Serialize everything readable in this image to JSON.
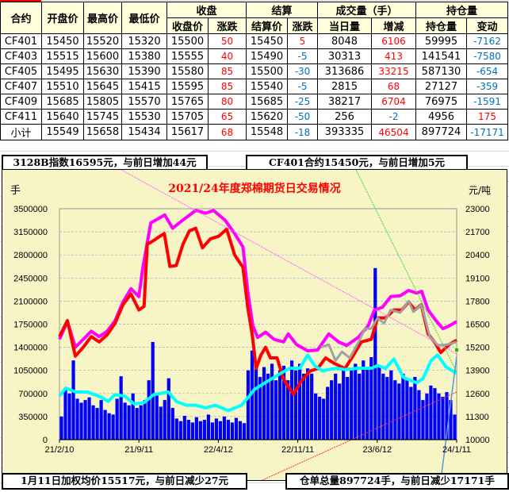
{
  "colors": {
    "up": "#ff0000",
    "down": "#0070c0",
    "header_bg": "#ffffdc",
    "chart_bg": "#f7f4c6"
  },
  "table": {
    "group_headers": {
      "close": "收盘",
      "settle": "结算",
      "volume": "成交量（手）",
      "oi": "持仓量"
    },
    "columns": [
      "合约",
      "开盘价",
      "最高价",
      "最低价",
      "收盘价",
      "涨跌",
      "结算价",
      "涨跌",
      "当日量",
      "增减",
      "持仓量",
      "变动"
    ],
    "rows": [
      [
        "CF401",
        "15450",
        "15520",
        "15320",
        "15500",
        "50",
        "15450",
        "5",
        "8048",
        "6106",
        "59995",
        "-7162"
      ],
      [
        "CF403",
        "15515",
        "15600",
        "15380",
        "15555",
        "40",
        "15490",
        "-5",
        "30313",
        "413",
        "141541",
        "-7580"
      ],
      [
        "CF405",
        "15495",
        "15630",
        "15390",
        "15580",
        "85",
        "15500",
        "-30",
        "313686",
        "33215",
        "587130",
        "-654"
      ],
      [
        "CF407",
        "15510",
        "15645",
        "15415",
        "15595",
        "85",
        "15540",
        "-5",
        "2815",
        "68",
        "27127",
        "-359"
      ],
      [
        "CF409",
        "15685",
        "15805",
        "15570",
        "15765",
        "80",
        "15685",
        "-25",
        "38217",
        "6704",
        "76975",
        "-1591"
      ],
      [
        "CF411",
        "15640",
        "15745",
        "15530",
        "15705",
        "65",
        "15620",
        "-50",
        "256",
        "-2",
        "4956",
        "175"
      ],
      [
        "小计",
        "15549",
        "15658",
        "15434",
        "15617",
        "68",
        "15548",
        "-18",
        "393335",
        "46504",
        "897724",
        "-17171"
      ]
    ]
  },
  "summary": {
    "index_text": "3128B指数16595元，与前日增加44元",
    "contract_text": "CF401合约15450元，与前日增加5元",
    "weighted_text": "1月11日加权均价15517元，与前日减少27元",
    "warehouse_text": "仓单总量897724手，与前日减少17171手"
  },
  "chart_data": {
    "type": "bar+line",
    "title": "2021/24年度郑棉期货日交易情况",
    "ylabel_left": "手",
    "ylabel_right": "元/吨",
    "ylim_left": [
      0,
      3500000
    ],
    "ylim_right": [
      10000,
      23000
    ],
    "yticks_left": [
      "0",
      "350000",
      "700000",
      "1050000",
      "1400000",
      "1750000",
      "2100000",
      "2450000",
      "2800000",
      "3150000",
      "3500000"
    ],
    "yticks_right": [
      "10000",
      "11300",
      "12600",
      "13900",
      "15200",
      "16500",
      "17800",
      "19100",
      "20400",
      "21700",
      "23000"
    ],
    "xticks": [
      "21/2/10",
      "21/9/11",
      "22/4/12",
      "22/11/11",
      "23/6/12",
      "24/1/11"
    ],
    "grid": true,
    "volume_bars": {
      "axis": "left",
      "color": "#0000ff",
      "values": [
        350000,
        780000,
        700000,
        1200000,
        620000,
        560000,
        600000,
        640000,
        520000,
        480000,
        600000,
        450000,
        400000,
        380000,
        620000,
        960000,
        560000,
        520000,
        700000,
        480000,
        520000,
        600000,
        900000,
        1480000,
        700000,
        500000,
        600000,
        930000,
        480000,
        320000,
        280000,
        360000,
        300000,
        260000,
        340000,
        280000,
        300000,
        380000,
        260000,
        320000,
        280000,
        350000,
        300000,
        260000,
        330000,
        280000,
        250000,
        1050000,
        1350000,
        1150000,
        950000,
        1100000,
        1000000,
        1150000,
        900000,
        1050000,
        1120000,
        900000,
        1200000,
        1050000,
        1150000,
        1000000,
        1080000,
        1000000,
        700000,
        650000,
        620000,
        800000,
        900000,
        1000000,
        850000,
        1100000,
        950000,
        1050000,
        1150000,
        1000000,
        1200000,
        1100000,
        1250000,
        2600000,
        1100000,
        1000000,
        950000,
        1050000,
        900000,
        850000,
        1000000,
        900000,
        800000,
        950000,
        750000,
        600000,
        700000,
        820000,
        780000,
        700000,
        650000,
        720000,
        600000,
        380000
      ]
    },
    "lines": [
      {
        "key": "magenta",
        "axis": "right",
        "color": "#ff00ff",
        "points": [
          [
            0,
            15650
          ],
          [
            0.02,
            16650
          ],
          [
            0.04,
            15200
          ],
          [
            0.06,
            15650
          ],
          [
            0.08,
            16100
          ],
          [
            0.1,
            15800
          ],
          [
            0.12,
            16100
          ],
          [
            0.14,
            16700
          ],
          [
            0.16,
            17750
          ],
          [
            0.18,
            18500
          ],
          [
            0.2,
            18050
          ],
          [
            0.21,
            19700
          ],
          [
            0.23,
            22200
          ],
          [
            0.265,
            22650
          ],
          [
            0.285,
            21900
          ],
          [
            0.31,
            22350
          ],
          [
            0.343,
            22900
          ],
          [
            0.368,
            22750
          ],
          [
            0.388,
            22900
          ],
          [
            0.417,
            22350
          ],
          [
            0.441,
            21600
          ],
          [
            0.462,
            20850
          ],
          [
            0.474,
            18350
          ],
          [
            0.487,
            16400
          ],
          [
            0.499,
            15750
          ],
          [
            0.519,
            16050
          ],
          [
            0.54,
            15650
          ],
          [
            0.564,
            15500
          ],
          [
            0.576,
            15950
          ],
          [
            0.597,
            15350
          ],
          [
            0.625,
            15000
          ],
          [
            0.65,
            15050
          ],
          [
            0.678,
            15950
          ],
          [
            0.703,
            15500
          ],
          [
            0.723,
            15300
          ],
          [
            0.752,
            15750
          ],
          [
            0.777,
            16400
          ],
          [
            0.793,
            17300
          ],
          [
            0.813,
            17450
          ],
          [
            0.834,
            18050
          ],
          [
            0.858,
            18100
          ],
          [
            0.879,
            18400
          ],
          [
            0.899,
            18250
          ],
          [
            0.912,
            18350
          ],
          [
            0.928,
            17300
          ],
          [
            0.948,
            16700
          ],
          [
            0.965,
            16250
          ],
          [
            0.981,
            16400
          ],
          [
            1,
            16650
          ]
        ]
      },
      {
        "key": "red",
        "axis": "right",
        "color": "#ff0000",
        "points": [
          [
            0,
            15800
          ],
          [
            0.02,
            16700
          ],
          [
            0.04,
            14700
          ],
          [
            0.06,
            15200
          ],
          [
            0.08,
            15800
          ],
          [
            0.1,
            15500
          ],
          [
            0.12,
            15900
          ],
          [
            0.14,
            16550
          ],
          [
            0.16,
            17600
          ],
          [
            0.18,
            18200
          ],
          [
            0.2,
            17300
          ],
          [
            0.213,
            17500
          ],
          [
            0.221,
            21000
          ],
          [
            0.233,
            21150
          ],
          [
            0.253,
            21450
          ],
          [
            0.264,
            21600
          ],
          [
            0.278,
            19750
          ],
          [
            0.294,
            19800
          ],
          [
            0.311,
            21000
          ],
          [
            0.327,
            21750
          ],
          [
            0.343,
            21900
          ],
          [
            0.36,
            20800
          ],
          [
            0.38,
            21300
          ],
          [
            0.401,
            21450
          ],
          [
            0.421,
            21850
          ],
          [
            0.441,
            20400
          ],
          [
            0.462,
            19700
          ],
          [
            0.474,
            17450
          ],
          [
            0.486,
            15800
          ],
          [
            0.495,
            14000
          ],
          [
            0.507,
            14750
          ],
          [
            0.519,
            15200
          ],
          [
            0.531,
            14600
          ],
          [
            0.548,
            14600
          ],
          [
            0.564,
            13400
          ],
          [
            0.589,
            12550
          ],
          [
            0.609,
            13300
          ],
          [
            0.63,
            13850
          ],
          [
            0.65,
            14000
          ],
          [
            0.67,
            14600
          ],
          [
            0.691,
            14300
          ],
          [
            0.719,
            14000
          ],
          [
            0.74,
            14750
          ],
          [
            0.76,
            15500
          ],
          [
            0.785,
            15650
          ],
          [
            0.801,
            16850
          ],
          [
            0.821,
            16850
          ],
          [
            0.842,
            17300
          ],
          [
            0.862,
            17300
          ],
          [
            0.879,
            17750
          ],
          [
            0.895,
            17300
          ],
          [
            0.911,
            17600
          ],
          [
            0.928,
            15950
          ],
          [
            0.944,
            15500
          ],
          [
            0.96,
            14900
          ],
          [
            0.981,
            15350
          ],
          [
            1,
            15600
          ]
        ]
      },
      {
        "key": "gray",
        "axis": "right",
        "color": "#a0a0a0",
        "points": [
          [
            0.658,
            15200
          ],
          [
            0.678,
            15350
          ],
          [
            0.695,
            14450
          ],
          [
            0.711,
            14950
          ],
          [
            0.731,
            14600
          ],
          [
            0.752,
            15450
          ],
          [
            0.769,
            16250
          ],
          [
            0.785,
            16250
          ],
          [
            0.801,
            16850
          ],
          [
            0.817,
            16550
          ],
          [
            0.834,
            17300
          ],
          [
            0.858,
            17150
          ],
          [
            0.879,
            17800
          ],
          [
            0.891,
            17200
          ],
          [
            0.911,
            17600
          ],
          [
            0.932,
            15800
          ],
          [
            0.953,
            15300
          ],
          [
            0.977,
            15350
          ],
          [
            1,
            15500
          ]
        ]
      },
      {
        "key": "cyan",
        "axis": "left",
        "color": "#00ffff",
        "points": [
          [
            0,
            661000
          ],
          [
            0.016,
            782000
          ],
          [
            0.041,
            722000
          ],
          [
            0.07,
            722000
          ],
          [
            0.098,
            661000
          ],
          [
            0.123,
            581000
          ],
          [
            0.139,
            681000
          ],
          [
            0.164,
            661000
          ],
          [
            0.188,
            541000
          ],
          [
            0.213,
            561000
          ],
          [
            0.237,
            681000
          ],
          [
            0.274,
            722000
          ],
          [
            0.294,
            581000
          ],
          [
            0.319,
            521000
          ],
          [
            0.343,
            521000
          ],
          [
            0.368,
            481000
          ],
          [
            0.392,
            521000
          ],
          [
            0.425,
            441000
          ],
          [
            0.458,
            521000
          ],
          [
            0.478,
            661000
          ],
          [
            0.491,
            762000
          ],
          [
            0.523,
            882000
          ],
          [
            0.556,
            1002000
          ],
          [
            0.58,
            1082000
          ],
          [
            0.605,
            1082000
          ],
          [
            0.625,
            1283000
          ],
          [
            0.642,
            1122000
          ],
          [
            0.662,
            1042000
          ],
          [
            0.695,
            1082000
          ],
          [
            0.719,
            1062000
          ],
          [
            0.752,
            1082000
          ],
          [
            0.785,
            1082000
          ],
          [
            0.801,
            1122000
          ],
          [
            0.821,
            1082000
          ],
          [
            0.842,
            1223000
          ],
          [
            0.866,
            942000
          ],
          [
            0.899,
            862000
          ],
          [
            0.915,
            922000
          ],
          [
            0.936,
            1203000
          ],
          [
            0.952,
            1283000
          ],
          [
            0.973,
            1102000
          ],
          [
            1,
            1002000
          ]
        ]
      }
    ]
  }
}
